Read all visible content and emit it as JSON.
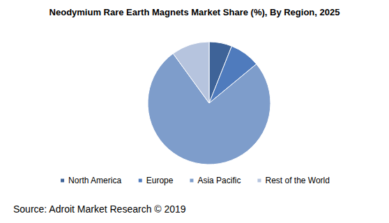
{
  "chart_data": {
    "type": "pie",
    "title": "Neodymium Rare Earth Magnets Market Share (%), By Region, 2025",
    "categories": [
      "North America",
      "Europe",
      "Asia Pacific",
      "Rest of the World"
    ],
    "values": [
      6,
      8,
      76,
      10
    ],
    "colors": [
      "#3e6398",
      "#4f7bbd",
      "#7e9dcb",
      "#b6c4de"
    ],
    "legend": "bottom",
    "data_labels": false,
    "annotations": [
      "Source: Adroit Market Research © 2019"
    ]
  }
}
